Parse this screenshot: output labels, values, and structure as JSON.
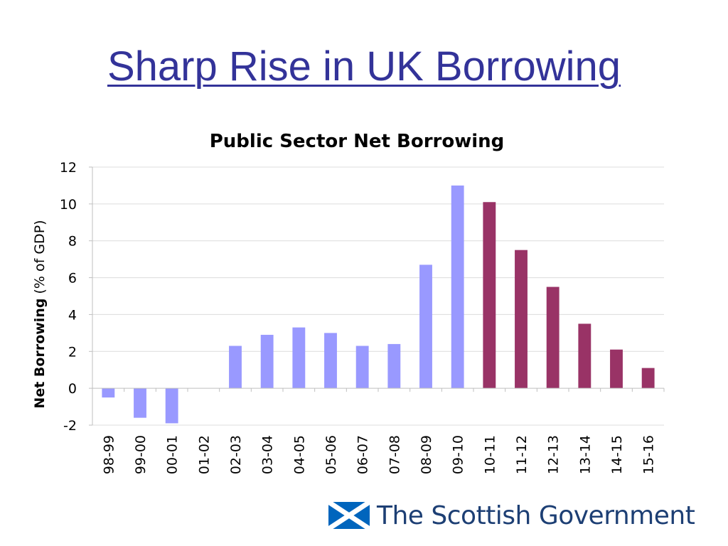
{
  "slide": {
    "title": "Sharp Rise in UK Borrowing",
    "title_color": "#333399"
  },
  "chart_data": {
    "type": "bar",
    "title": "Public Sector Net Borrowing",
    "ylabel_bold": "Net Borrowing",
    "ylabel_rest": " (% of GDP)",
    "xlabel": "",
    "ylim": [
      -2,
      12
    ],
    "yticks": [
      -2,
      0,
      2,
      4,
      6,
      8,
      10,
      12
    ],
    "grid": true,
    "categories": [
      "98-99",
      "99-00",
      "00-01",
      "01-02",
      "02-03",
      "03-04",
      "04-05",
      "05-06",
      "06-07",
      "07-08",
      "08-09",
      "09-10",
      "10-11",
      "11-12",
      "12-13",
      "13-14",
      "14-15",
      "15-16"
    ],
    "values": [
      -0.5,
      -1.6,
      -1.9,
      0,
      2.3,
      2.9,
      3.3,
      3.0,
      2.3,
      2.4,
      6.7,
      11.0,
      10.1,
      7.5,
      5.5,
      3.5,
      2.1,
      1.1
    ],
    "bar_colors": [
      "#9999ff",
      "#9999ff",
      "#9999ff",
      "#9999ff",
      "#9999ff",
      "#9999ff",
      "#9999ff",
      "#9999ff",
      "#9999ff",
      "#9999ff",
      "#9999ff",
      "#9999ff",
      "#993366",
      "#993366",
      "#993366",
      "#993366",
      "#993366",
      "#993366"
    ]
  },
  "footer": {
    "logo_text": "The Scottish Government",
    "logo_icon": "saltire-flag-icon",
    "logo_color": "#1d3f74"
  }
}
